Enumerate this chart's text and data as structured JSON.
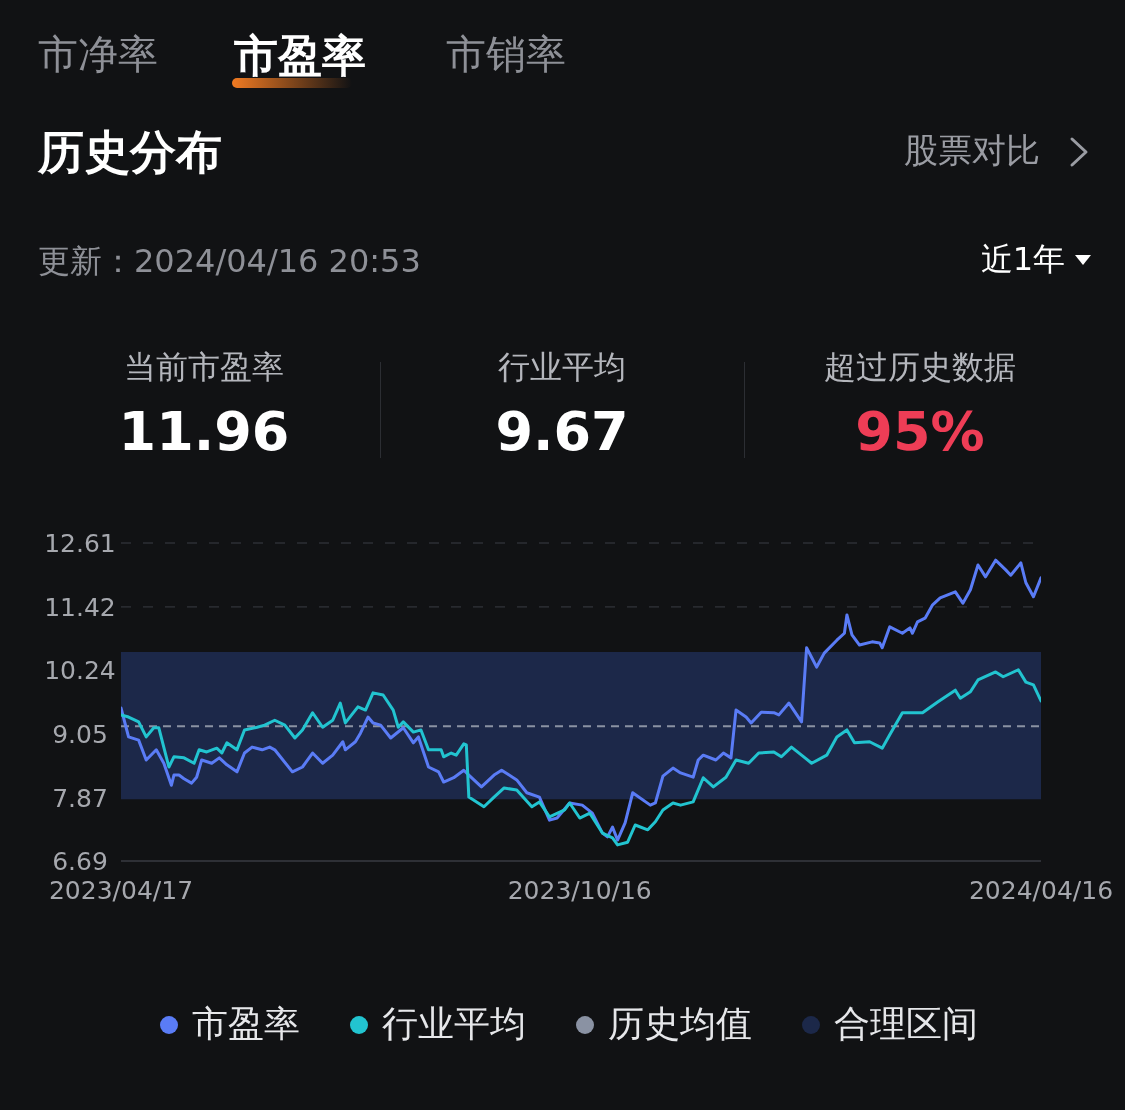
{
  "chart_data": {
    "type": "line",
    "title": "历史分布",
    "subtitle": "更新：2024/04/16 20:53",
    "annotations": [
      "市净率",
      "市盈率",
      "市销率",
      "股票对比",
      "近1年",
      "当前市盈率",
      "11.96",
      "行业平均",
      "9.67",
      "超过历史数据",
      "95%"
    ],
    "xlim": [
      "2023-04-17",
      "2024-04-16"
    ],
    "xticks": [
      {
        "value": "2023-04-17",
        "label": "2023/04/17"
      },
      {
        "value": "2023-10-16",
        "label": "2023/10/16"
      },
      {
        "value": "2024-04-16",
        "label": "2024/04/16"
      }
    ],
    "ylim": [
      6.69,
      12.61
    ],
    "yticks": [
      6.69,
      7.87,
      9.05,
      10.24,
      11.42,
      12.61
    ],
    "grid": "y",
    "legend": "bottom",
    "marker": "none",
    "line_style": "solid",
    "ref_lines": [
      {
        "axis": "y",
        "value": 9.2,
        "label": "历史均值",
        "color": "#8a92a3",
        "line_style": "dashed"
      }
    ],
    "bands": [
      {
        "axis": "y",
        "from": 7.84,
        "to": 10.58,
        "label": "合理区间",
        "color": "#1c2849"
      }
    ],
    "series": [
      {
        "name": "市盈率",
        "color": "#5a7cf6",
        "x": [
          "2023-04-17",
          "2023-04-19",
          "2023-04-20",
          "2023-04-24",
          "2023-04-27",
          "2023-05-01",
          "2023-05-04",
          "2023-05-07",
          "2023-05-08",
          "2023-05-10",
          "2023-05-12",
          "2023-05-15",
          "2023-05-17",
          "2023-05-19",
          "2023-05-23",
          "2023-05-26",
          "2023-05-29",
          "2023-06-02",
          "2023-06-05",
          "2023-06-08",
          "2023-06-12",
          "2023-06-15",
          "2023-06-17",
          "2023-06-24",
          "2023-06-28",
          "2023-07-02",
          "2023-07-06",
          "2023-07-10",
          "2023-07-14",
          "2023-07-15",
          "2023-07-19",
          "2023-07-21",
          "2023-07-24",
          "2023-07-26",
          "2023-07-29",
          "2023-08-02",
          "2023-08-07",
          "2023-08-11",
          "2023-08-13",
          "2023-08-17",
          "2023-08-21",
          "2023-08-23",
          "2023-08-27",
          "2023-08-31",
          "2023-09-02",
          "2023-09-07",
          "2023-09-12",
          "2023-09-15",
          "2023-09-21",
          "2023-09-25",
          "2023-09-30",
          "2023-10-04",
          "2023-10-07",
          "2023-10-12",
          "2023-10-17",
          "2023-10-21",
          "2023-10-25",
          "2023-10-27",
          "2023-10-29",
          "2023-10-31",
          "2023-11-03",
          "2023-11-06",
          "2023-11-13",
          "2023-11-15",
          "2023-11-18",
          "2023-11-22",
          "2023-11-25",
          "2023-11-30",
          "2023-12-02",
          "2023-12-04",
          "2023-12-09",
          "2023-12-12",
          "2023-12-15",
          "2023-12-17",
          "2023-12-21",
          "2023-12-23",
          "2023-12-27",
          "2024-01-01",
          "2024-01-03",
          "2024-01-07",
          "2024-01-12",
          "2024-01-14",
          "2024-01-18",
          "2024-01-21",
          "2024-01-26",
          "2024-01-29",
          "2024-01-30",
          "2024-02-01",
          "2024-02-04",
          "2024-02-09",
          "2024-02-12",
          "2024-02-13",
          "2024-02-16",
          "2024-02-21",
          "2024-02-24",
          "2024-02-25",
          "2024-02-27",
          "2024-03-01",
          "2024-03-04",
          "2024-03-07",
          "2024-03-13",
          "2024-03-16",
          "2024-03-19",
          "2024-03-22",
          "2024-03-25",
          "2024-03-29",
          "2024-04-02",
          "2024-04-04",
          "2024-04-08",
          "2024-04-10",
          "2024-04-13",
          "2024-04-16"
        ],
        "values": [
          9.54,
          9.18,
          9.0,
          8.94,
          8.57,
          8.76,
          8.51,
          8.1,
          8.29,
          8.29,
          8.22,
          8.14,
          8.25,
          8.57,
          8.51,
          8.61,
          8.48,
          8.35,
          8.7,
          8.81,
          8.76,
          8.81,
          8.76,
          8.35,
          8.44,
          8.7,
          8.51,
          8.66,
          8.91,
          8.76,
          8.91,
          9.07,
          9.37,
          9.26,
          9.22,
          8.98,
          9.17,
          8.89,
          9.0,
          8.44,
          8.35,
          8.16,
          8.24,
          8.38,
          8.29,
          8.07,
          8.29,
          8.38,
          8.2,
          7.96,
          7.88,
          7.45,
          7.49,
          7.77,
          7.73,
          7.58,
          7.21,
          7.14,
          7.32,
          7.08,
          7.4,
          7.96,
          7.73,
          7.77,
          8.27,
          8.42,
          8.33,
          8.25,
          8.57,
          8.66,
          8.57,
          8.7,
          8.61,
          9.5,
          9.37,
          9.26,
          9.46,
          9.45,
          9.41,
          9.63,
          9.28,
          10.66,
          10.3,
          10.56,
          10.8,
          10.93,
          11.27,
          10.9,
          10.71,
          10.77,
          10.75,
          10.66,
          11.05,
          10.93,
          11.03,
          10.93,
          11.14,
          11.21,
          11.46,
          11.59,
          11.7,
          11.49,
          11.74,
          12.2,
          11.98,
          12.29,
          12.11,
          12.01,
          12.24,
          11.87,
          11.61,
          11.96
        ]
      },
      {
        "name": "行业平均",
        "color": "#22c4d0",
        "x": [
          "2023-04-17",
          "2023-04-20",
          "2023-04-24",
          "2023-04-27",
          "2023-04-30",
          "2023-05-02",
          "2023-05-06",
          "2023-05-08",
          "2023-05-12",
          "2023-05-16",
          "2023-05-18",
          "2023-05-21",
          "2023-05-25",
          "2023-05-27",
          "2023-05-29",
          "2023-06-02",
          "2023-06-05",
          "2023-06-10",
          "2023-06-13",
          "2023-06-17",
          "2023-06-21",
          "2023-06-25",
          "2023-06-28",
          "2023-07-02",
          "2023-07-06",
          "2023-07-10",
          "2023-07-13",
          "2023-07-15",
          "2023-07-20",
          "2023-07-23",
          "2023-07-26",
          "2023-07-30",
          "2023-08-03",
          "2023-08-05",
          "2023-08-07",
          "2023-08-11",
          "2023-08-14",
          "2023-08-17",
          "2023-08-22",
          "2023-08-23",
          "2023-08-26",
          "2023-08-28",
          "2023-08-31",
          "2023-09-01",
          "2023-09-02",
          "2023-09-08",
          "2023-09-12",
          "2023-09-16",
          "2023-09-21",
          "2023-09-27",
          "2023-09-30",
          "2023-10-04",
          "2023-10-10",
          "2023-10-12",
          "2023-10-16",
          "2023-10-20",
          "2023-10-25",
          "2023-10-29",
          "2023-10-31",
          "2023-11-04",
          "2023-11-07",
          "2023-11-12",
          "2023-11-15",
          "2023-11-18",
          "2023-11-22",
          "2023-11-25",
          "2023-11-30",
          "2023-12-04",
          "2023-12-08",
          "2023-12-13",
          "2023-12-17",
          "2023-12-22",
          "2023-12-26",
          "2024-01-01",
          "2024-01-04",
          "2024-01-08",
          "2024-01-12",
          "2024-01-16",
          "2024-01-22",
          "2024-01-26",
          "2024-01-30",
          "2024-02-02",
          "2024-02-08",
          "2024-02-13",
          "2024-02-16",
          "2024-02-21",
          "2024-02-29",
          "2024-03-06",
          "2024-03-13",
          "2024-03-15",
          "2024-03-19",
          "2024-03-22",
          "2024-03-29",
          "2024-04-01",
          "2024-04-07",
          "2024-04-10",
          "2024-04-13",
          "2024-04-16"
        ],
        "values": [
          9.41,
          9.37,
          9.28,
          9.0,
          9.17,
          9.17,
          8.44,
          8.63,
          8.61,
          8.51,
          8.76,
          8.72,
          8.79,
          8.7,
          8.89,
          8.76,
          9.13,
          9.18,
          9.22,
          9.31,
          9.22,
          8.98,
          9.13,
          9.45,
          9.18,
          9.31,
          9.63,
          9.26,
          9.56,
          9.5,
          9.82,
          9.78,
          9.5,
          9.18,
          9.28,
          9.09,
          9.13,
          8.76,
          8.76,
          8.63,
          8.7,
          8.66,
          8.87,
          8.85,
          7.88,
          7.7,
          7.88,
          8.05,
          8.01,
          7.7,
          7.79,
          7.51,
          7.64,
          7.77,
          7.49,
          7.58,
          7.21,
          7.12,
          6.99,
          7.04,
          7.36,
          7.27,
          7.42,
          7.64,
          7.77,
          7.73,
          7.79,
          8.24,
          8.07,
          8.25,
          8.57,
          8.51,
          8.7,
          8.72,
          8.63,
          8.81,
          8.66,
          8.51,
          8.66,
          9.0,
          9.13,
          8.89,
          8.91,
          8.79,
          9.04,
          9.45,
          9.45,
          9.65,
          9.87,
          9.72,
          9.84,
          10.06,
          10.21,
          10.12,
          10.25,
          10.02,
          9.97,
          9.67
        ]
      }
    ]
  }
}
